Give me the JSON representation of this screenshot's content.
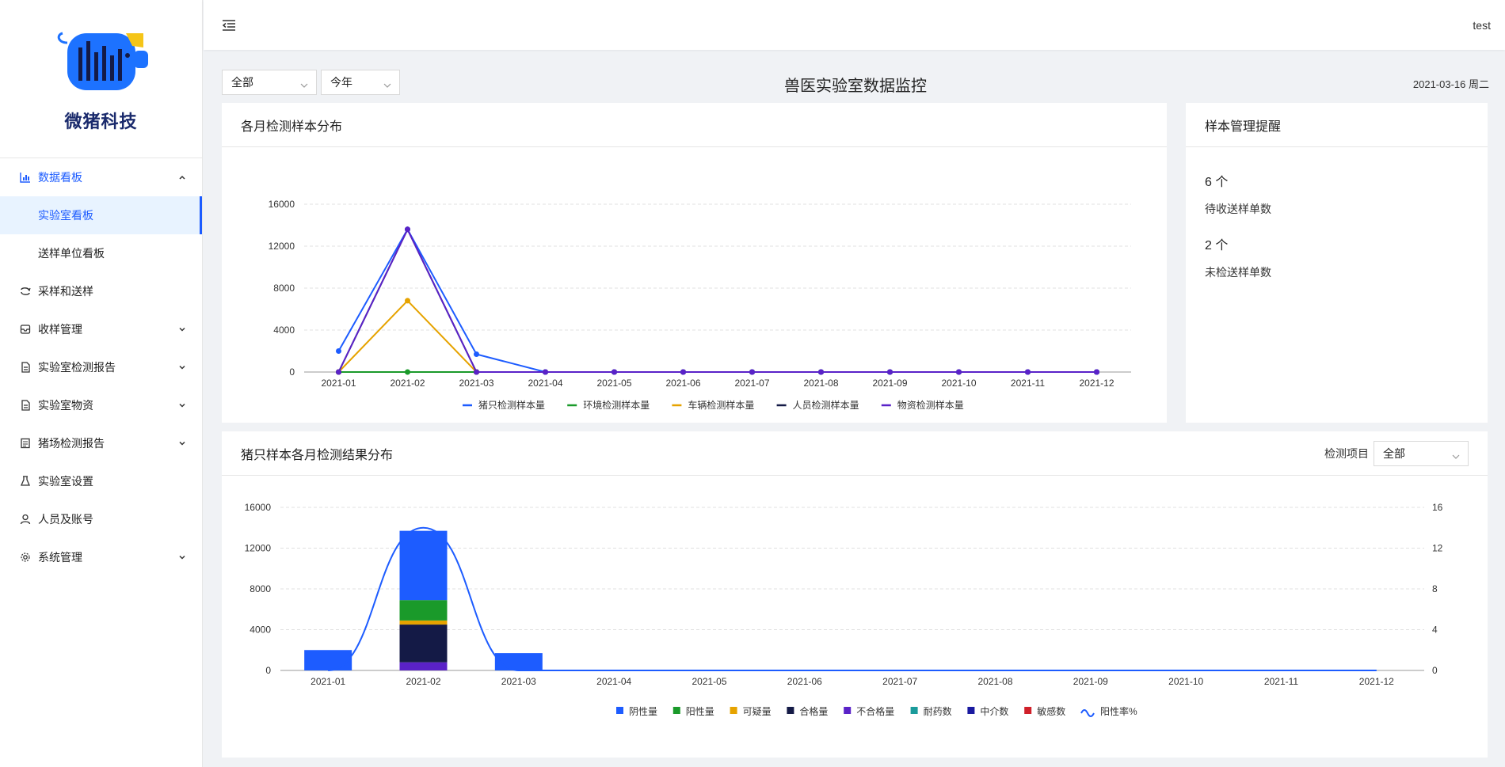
{
  "brand": {
    "name": "微猪科技"
  },
  "sidebar": {
    "items": [
      {
        "label": "数据看板",
        "icon": "bar-chart-icon",
        "open": true,
        "children": [
          {
            "label": "实验室看板",
            "active": true
          },
          {
            "label": "送样单位看板",
            "active": false
          }
        ]
      },
      {
        "label": "采样和送样",
        "icon": "swap-icon"
      },
      {
        "label": "收样管理",
        "icon": "inbox-icon",
        "expandable": true
      },
      {
        "label": "实验室检测报告",
        "icon": "file-icon",
        "expandable": true
      },
      {
        "label": "实验室物资",
        "icon": "file-icon",
        "expandable": true
      },
      {
        "label": "猪场检测报告",
        "icon": "report-icon",
        "expandable": true
      },
      {
        "label": "实验室设置",
        "icon": "flask-icon"
      },
      {
        "label": "人员及账号",
        "icon": "user-icon"
      },
      {
        "label": "系统管理",
        "icon": "gear-icon",
        "expandable": true
      }
    ]
  },
  "header": {
    "user": "test"
  },
  "toolbar": {
    "select_scope": "全部",
    "select_period": "今年",
    "title": "兽医实验室数据监控",
    "date": "2021-03-16 周二"
  },
  "panel_samples": {
    "title": "各月检测样本分布"
  },
  "panel_reminder": {
    "title": "样本管理提醒",
    "items": [
      {
        "count": "6 个",
        "label": "待收送样单数"
      },
      {
        "count": "2 个",
        "label": "未检送样单数"
      }
    ]
  },
  "panel_results": {
    "title": "猪只样本各月检测结果分布",
    "filter_label": "检测项目",
    "filter_value": "全部"
  },
  "chart_data": [
    {
      "type": "line",
      "categories": [
        "2021-01",
        "2021-02",
        "2021-03",
        "2021-04",
        "2021-05",
        "2021-06",
        "2021-07",
        "2021-08",
        "2021-09",
        "2021-10",
        "2021-11",
        "2021-12"
      ],
      "ylim": [
        0,
        16000
      ],
      "yticks": [
        0,
        4000,
        8000,
        12000,
        16000
      ],
      "grid": true,
      "legend_position": "bottom",
      "series": [
        {
          "name": "猪只检测样本量",
          "color": "#1d5cff",
          "values": [
            2000,
            13600,
            1700,
            0,
            0,
            0,
            0,
            0,
            0,
            0,
            0,
            0
          ]
        },
        {
          "name": "环境检测样本量",
          "color": "#1a9a2a",
          "values": [
            0,
            0,
            0,
            0,
            0,
            0,
            0,
            0,
            0,
            0,
            0,
            0
          ]
        },
        {
          "name": "车辆检测样本量",
          "color": "#e6a300",
          "values": [
            0,
            6800,
            0,
            0,
            0,
            0,
            0,
            0,
            0,
            0,
            0,
            0
          ]
        },
        {
          "name": "人员检测样本量",
          "color": "#141a46",
          "values": [
            0,
            13600,
            0,
            0,
            0,
            0,
            0,
            0,
            0,
            0,
            0,
            0
          ]
        },
        {
          "name": "物资检测样本量",
          "color": "#5a22c8",
          "values": [
            0,
            13600,
            0,
            0,
            0,
            0,
            0,
            0,
            0,
            0,
            0,
            0
          ]
        }
      ]
    },
    {
      "type": "bar",
      "stacked": true,
      "categories": [
        "2021-01",
        "2021-02",
        "2021-03",
        "2021-04",
        "2021-05",
        "2021-06",
        "2021-07",
        "2021-08",
        "2021-09",
        "2021-10",
        "2021-11",
        "2021-12"
      ],
      "ylim": [
        0,
        16000
      ],
      "yticks": [
        0,
        4000,
        8000,
        12000,
        16000
      ],
      "y2lim": [
        0,
        16
      ],
      "y2ticks": [
        0,
        4,
        8,
        12,
        16
      ],
      "grid": true,
      "legend_position": "bottom",
      "series": [
        {
          "name": "不合格量",
          "color": "#5a22c8",
          "values": [
            0,
            800,
            0,
            0,
            0,
            0,
            0,
            0,
            0,
            0,
            0,
            0
          ]
        },
        {
          "name": "合格量",
          "color": "#141a46",
          "values": [
            0,
            3700,
            0,
            0,
            0,
            0,
            0,
            0,
            0,
            0,
            0,
            0
          ]
        },
        {
          "name": "可疑量",
          "color": "#e6a300",
          "values": [
            0,
            400,
            0,
            0,
            0,
            0,
            0,
            0,
            0,
            0,
            0,
            0
          ]
        },
        {
          "name": "阳性量",
          "color": "#1a9a2a",
          "values": [
            0,
            2000,
            0,
            0,
            0,
            0,
            0,
            0,
            0,
            0,
            0,
            0
          ]
        },
        {
          "name": "阴性量",
          "color": "#1d5cff",
          "values": [
            2000,
            6800,
            1700,
            0,
            0,
            0,
            0,
            0,
            0,
            0,
            0,
            0
          ]
        },
        {
          "name": "耐药数",
          "color": "#1a9b9b",
          "values": [
            0,
            0,
            0,
            0,
            0,
            0,
            0,
            0,
            0,
            0,
            0,
            0
          ]
        },
        {
          "name": "中介数",
          "color": "#1a1aa0",
          "values": [
            0,
            0,
            0,
            0,
            0,
            0,
            0,
            0,
            0,
            0,
            0,
            0
          ]
        },
        {
          "name": "敏感数",
          "color": "#d0202a",
          "values": [
            0,
            0,
            0,
            0,
            0,
            0,
            0,
            0,
            0,
            0,
            0,
            0
          ]
        }
      ],
      "legend_order": [
        "阴性量",
        "阳性量",
        "可疑量",
        "合格量",
        "不合格量",
        "耐药数",
        "中介数",
        "敏感数",
        "阳性率%"
      ],
      "line_series": {
        "name": "阳性率%",
        "color": "#1d5cff",
        "axis": "right",
        "values": [
          0,
          14,
          0,
          0,
          0,
          0,
          0,
          0,
          0,
          0,
          0,
          0
        ]
      }
    }
  ]
}
